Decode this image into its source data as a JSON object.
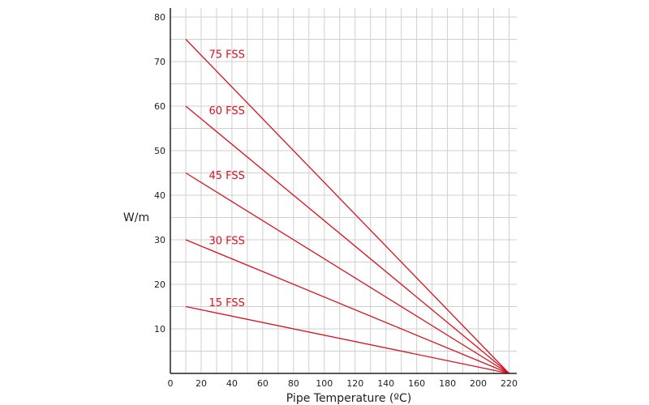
{
  "colors": {
    "series": "#d8121f",
    "grid": "#cfcfcf",
    "axis": "#222222",
    "text": "#222222",
    "background": "#ffffff"
  },
  "chart_data": {
    "type": "line",
    "title": "",
    "xlabel": "Pipe Temperature (ºC)",
    "ylabel": "W/m",
    "xlim": [
      0,
      225
    ],
    "ylim": [
      0,
      82
    ],
    "x_ticks": [
      0,
      20,
      40,
      60,
      80,
      100,
      120,
      140,
      160,
      180,
      200,
      220
    ],
    "y_ticks": [
      10,
      20,
      30,
      40,
      50,
      60,
      70,
      80
    ],
    "x_tick_labels": [
      "0",
      "20",
      "40",
      "60",
      "80",
      "100",
      "120",
      "140",
      "160",
      "180",
      "200",
      "220"
    ],
    "y_tick_labels": [
      "10",
      "20",
      "30",
      "40",
      "50",
      "60",
      "70",
      "80"
    ],
    "grid": true,
    "legend": "none",
    "series": [
      {
        "name": "75 FSS",
        "x": [
          10,
          220
        ],
        "y": [
          75,
          0
        ],
        "label_x": 25,
        "label_y": 70.8
      },
      {
        "name": "60 FSS",
        "x": [
          10,
          220
        ],
        "y": [
          60,
          0
        ],
        "label_x": 25,
        "label_y": 58.2
      },
      {
        "name": "45 FSS",
        "x": [
          10,
          220
        ],
        "y": [
          45,
          0
        ],
        "label_x": 25,
        "label_y": 43.6
      },
      {
        "name": "30 FSS",
        "x": [
          10,
          220
        ],
        "y": [
          30,
          0
        ],
        "label_x": 25,
        "label_y": 29
      },
      {
        "name": "15 FSS",
        "x": [
          10,
          220
        ],
        "y": [
          15,
          0
        ],
        "label_x": 25,
        "label_y": 15.1
      }
    ]
  }
}
